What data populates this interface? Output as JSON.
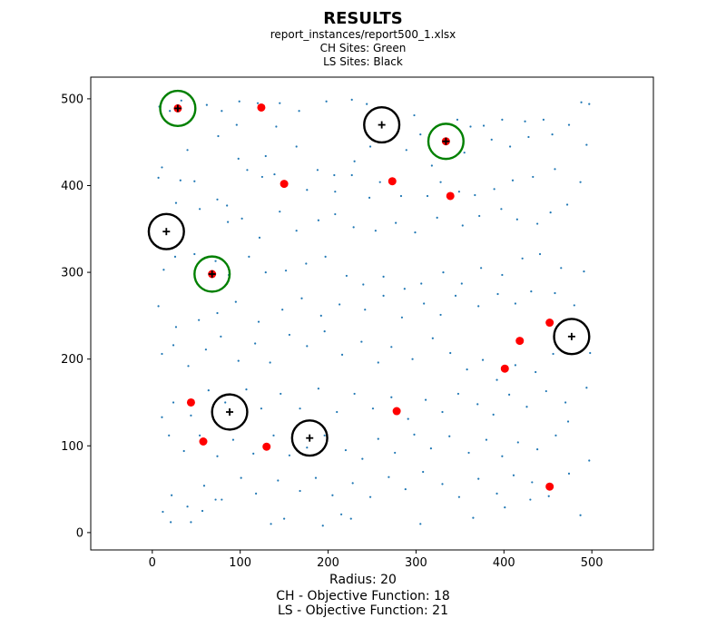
{
  "chart_data": {
    "type": "scatter",
    "title": "RESULTS",
    "subtitle_lines": [
      "report_instances/report500_1.xlsx",
      "CH Sites: Green",
      "LS Sites: Black"
    ],
    "footer_lines": [
      "Radius: 20",
      "CH - Objective Function: 18",
      "LS - Objective Function: 21"
    ],
    "xlim": [
      -70,
      570
    ],
    "ylim": [
      -20,
      525
    ],
    "x_ticks": [
      0,
      100,
      200,
      300,
      400,
      500
    ],
    "y_ticks": [
      0,
      100,
      200,
      300,
      400,
      500
    ],
    "grid": false,
    "colors": {
      "points": "#1f77b4",
      "uncovered": "#ff0000",
      "ch_ring": "#008000",
      "ls_ring": "#000000",
      "cross": "#000000"
    },
    "radius": 20,
    "ch_sites": [
      [
        29,
        489
      ],
      [
        334,
        451
      ],
      [
        68,
        298
      ]
    ],
    "ls_sites": [
      [
        261,
        470
      ],
      [
        16,
        347
      ],
      [
        477,
        226
      ],
      [
        88,
        139
      ],
      [
        179,
        109
      ]
    ],
    "uncovered_points": [
      [
        29,
        489
      ],
      [
        124,
        490
      ],
      [
        334,
        451
      ],
      [
        150,
        402
      ],
      [
        273,
        405
      ],
      [
        339,
        388
      ],
      [
        68,
        298
      ],
      [
        452,
        242
      ],
      [
        418,
        221
      ],
      [
        401,
        189
      ],
      [
        44,
        150
      ],
      [
        278,
        140
      ],
      [
        58,
        105
      ],
      [
        130,
        99
      ],
      [
        452,
        53
      ]
    ],
    "points": [
      [
        8,
        491
      ],
      [
        20,
        486
      ],
      [
        33,
        498
      ],
      [
        62,
        493
      ],
      [
        79,
        486
      ],
      [
        96,
        470
      ],
      [
        99,
        497
      ],
      [
        120,
        495
      ],
      [
        141,
        468
      ],
      [
        145,
        495
      ],
      [
        167,
        486
      ],
      [
        198,
        497
      ],
      [
        227,
        499
      ],
      [
        244,
        494
      ],
      [
        298,
        481
      ],
      [
        305,
        459
      ],
      [
        347,
        476
      ],
      [
        362,
        468
      ],
      [
        377,
        469
      ],
      [
        398,
        476
      ],
      [
        424,
        474
      ],
      [
        445,
        476
      ],
      [
        474,
        470
      ],
      [
        488,
        496
      ],
      [
        497,
        494
      ],
      [
        494,
        447
      ],
      [
        455,
        459
      ],
      [
        428,
        456
      ],
      [
        407,
        445
      ],
      [
        386,
        453
      ],
      [
        355,
        438
      ],
      [
        318,
        423
      ],
      [
        289,
        441
      ],
      [
        248,
        445
      ],
      [
        230,
        428
      ],
      [
        207,
        412
      ],
      [
        188,
        418
      ],
      [
        164,
        445
      ],
      [
        129,
        434
      ],
      [
        98,
        431
      ],
      [
        75,
        457
      ],
      [
        40,
        441
      ],
      [
        11,
        421
      ],
      [
        7,
        409
      ],
      [
        32,
        406
      ],
      [
        48,
        405
      ],
      [
        74,
        384
      ],
      [
        85,
        377
      ],
      [
        108,
        418
      ],
      [
        125,
        410
      ],
      [
        139,
        413
      ],
      [
        176,
        395
      ],
      [
        208,
        393
      ],
      [
        227,
        412
      ],
      [
        247,
        386
      ],
      [
        259,
        404
      ],
      [
        283,
        388
      ],
      [
        313,
        388
      ],
      [
        328,
        404
      ],
      [
        349,
        393
      ],
      [
        367,
        389
      ],
      [
        389,
        396
      ],
      [
        410,
        406
      ],
      [
        433,
        410
      ],
      [
        458,
        419
      ],
      [
        487,
        404
      ],
      [
        472,
        378
      ],
      [
        453,
        369
      ],
      [
        438,
        356
      ],
      [
        415,
        361
      ],
      [
        397,
        373
      ],
      [
        372,
        365
      ],
      [
        353,
        354
      ],
      [
        324,
        363
      ],
      [
        299,
        346
      ],
      [
        277,
        357
      ],
      [
        254,
        348
      ],
      [
        229,
        352
      ],
      [
        208,
        367
      ],
      [
        189,
        360
      ],
      [
        164,
        348
      ],
      [
        145,
        370
      ],
      [
        122,
        340
      ],
      [
        102,
        362
      ],
      [
        86,
        358
      ],
      [
        54,
        373
      ],
      [
        27,
        380
      ],
      [
        6,
        330
      ],
      [
        13,
        303
      ],
      [
        26,
        318
      ],
      [
        48,
        321
      ],
      [
        72,
        313
      ],
      [
        87,
        297
      ],
      [
        110,
        318
      ],
      [
        129,
        300
      ],
      [
        152,
        302
      ],
      [
        175,
        310
      ],
      [
        197,
        318
      ],
      [
        221,
        296
      ],
      [
        240,
        286
      ],
      [
        263,
        295
      ],
      [
        287,
        281
      ],
      [
        306,
        287
      ],
      [
        331,
        300
      ],
      [
        352,
        287
      ],
      [
        374,
        305
      ],
      [
        398,
        297
      ],
      [
        421,
        316
      ],
      [
        441,
        321
      ],
      [
        465,
        305
      ],
      [
        491,
        301
      ],
      [
        480,
        262
      ],
      [
        458,
        276
      ],
      [
        431,
        278
      ],
      [
        413,
        264
      ],
      [
        393,
        275
      ],
      [
        371,
        261
      ],
      [
        345,
        273
      ],
      [
        328,
        251
      ],
      [
        309,
        264
      ],
      [
        284,
        248
      ],
      [
        263,
        273
      ],
      [
        242,
        257
      ],
      [
        213,
        263
      ],
      [
        192,
        250
      ],
      [
        170,
        270
      ],
      [
        148,
        257
      ],
      [
        121,
        243
      ],
      [
        95,
        266
      ],
      [
        74,
        253
      ],
      [
        53,
        245
      ],
      [
        27,
        237
      ],
      [
        7,
        261
      ],
      [
        11,
        206
      ],
      [
        24,
        216
      ],
      [
        41,
        192
      ],
      [
        61,
        211
      ],
      [
        78,
        226
      ],
      [
        98,
        198
      ],
      [
        117,
        218
      ],
      [
        134,
        196
      ],
      [
        156,
        228
      ],
      [
        176,
        215
      ],
      [
        196,
        232
      ],
      [
        216,
        205
      ],
      [
        238,
        220
      ],
      [
        257,
        196
      ],
      [
        272,
        214
      ],
      [
        296,
        200
      ],
      [
        319,
        224
      ],
      [
        339,
        207
      ],
      [
        358,
        188
      ],
      [
        376,
        199
      ],
      [
        392,
        176
      ],
      [
        413,
        193
      ],
      [
        436,
        185
      ],
      [
        456,
        206
      ],
      [
        498,
        207
      ],
      [
        494,
        167
      ],
      [
        470,
        150
      ],
      [
        448,
        163
      ],
      [
        426,
        145
      ],
      [
        406,
        159
      ],
      [
        388,
        136
      ],
      [
        370,
        148
      ],
      [
        348,
        160
      ],
      [
        330,
        139
      ],
      [
        311,
        153
      ],
      [
        291,
        131
      ],
      [
        272,
        156
      ],
      [
        251,
        143
      ],
      [
        230,
        160
      ],
      [
        210,
        139
      ],
      [
        189,
        166
      ],
      [
        168,
        143
      ],
      [
        146,
        160
      ],
      [
        124,
        143
      ],
      [
        107,
        165
      ],
      [
        83,
        150
      ],
      [
        64,
        164
      ],
      [
        44,
        135
      ],
      [
        24,
        150
      ],
      [
        11,
        133
      ],
      [
        19,
        112
      ],
      [
        36,
        94
      ],
      [
        54,
        112
      ],
      [
        74,
        88
      ],
      [
        92,
        107
      ],
      [
        115,
        91
      ],
      [
        138,
        112
      ],
      [
        156,
        89
      ],
      [
        176,
        98
      ],
      [
        196,
        112
      ],
      [
        220,
        95
      ],
      [
        239,
        85
      ],
      [
        257,
        108
      ],
      [
        276,
        92
      ],
      [
        298,
        113
      ],
      [
        317,
        97
      ],
      [
        338,
        111
      ],
      [
        360,
        92
      ],
      [
        380,
        107
      ],
      [
        398,
        88
      ],
      [
        416,
        104
      ],
      [
        438,
        96
      ],
      [
        459,
        112
      ],
      [
        473,
        128
      ],
      [
        497,
        83
      ],
      [
        474,
        68
      ],
      [
        451,
        42
      ],
      [
        432,
        58
      ],
      [
        411,
        66
      ],
      [
        392,
        45
      ],
      [
        371,
        62
      ],
      [
        349,
        41
      ],
      [
        330,
        56
      ],
      [
        308,
        70
      ],
      [
        288,
        50
      ],
      [
        269,
        64
      ],
      [
        248,
        41
      ],
      [
        228,
        57
      ],
      [
        205,
        43
      ],
      [
        186,
        63
      ],
      [
        168,
        48
      ],
      [
        143,
        60
      ],
      [
        118,
        45
      ],
      [
        101,
        63
      ],
      [
        79,
        38
      ],
      [
        59,
        54
      ],
      [
        40,
        30
      ],
      [
        22,
        43
      ],
      [
        12,
        24
      ],
      [
        21,
        12
      ],
      [
        44,
        12
      ],
      [
        57,
        25
      ],
      [
        72,
        38
      ],
      [
        135,
        10
      ],
      [
        150,
        16
      ],
      [
        194,
        8
      ],
      [
        215,
        21
      ],
      [
        226,
        16
      ],
      [
        305,
        10
      ],
      [
        365,
        17
      ],
      [
        401,
        29
      ],
      [
        430,
        38
      ],
      [
        487,
        20
      ]
    ]
  }
}
